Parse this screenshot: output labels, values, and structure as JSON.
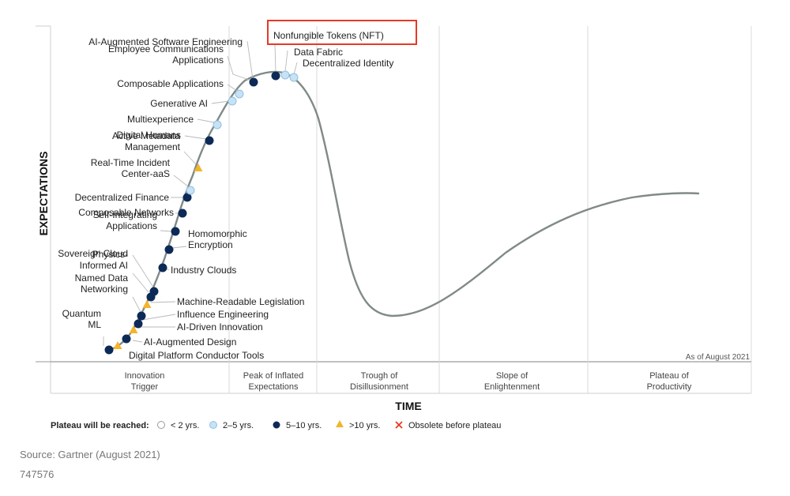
{
  "chart_data": {
    "type": "line",
    "subtype": "hype-cycle",
    "title": "",
    "ylabel": "EXPECTATIONS",
    "xlabel": "TIME",
    "as_of": "As of August 2021",
    "highlighted": "Nonfungible Tokens (NFT)",
    "phases": [
      "Innovation Trigger",
      "Peak of Inflated Expectations",
      "Trough of Disillusionment",
      "Slope of Enlightenment",
      "Plateau of Productivity"
    ],
    "legend": {
      "title": "Plateau will be reached:",
      "items": [
        {
          "label": "< 2 yrs.",
          "marker": "circle-white"
        },
        {
          "label": "2–5 yrs.",
          "marker": "circle-light-blue"
        },
        {
          "label": "5–10 yrs.",
          "marker": "circle-dark-blue"
        },
        {
          "label": ">10 yrs.",
          "marker": "triangle-yellow"
        },
        {
          "label": "Obsolete before plateau",
          "marker": "red-x"
        }
      ]
    },
    "technologies": [
      {
        "name": "Digital Platform Conductor Tools",
        "plateau": ">10 yrs."
      },
      {
        "name": "Quantum ML",
        "plateau": "5–10 yrs."
      },
      {
        "name": "AI-Augmented Design",
        "plateau": "5–10 yrs."
      },
      {
        "name": "AI-Driven Innovation",
        "plateau": ">10 yrs."
      },
      {
        "name": "Influence Engineering",
        "plateau": "5–10 yrs."
      },
      {
        "name": "Named Data Networking",
        "plateau": "5–10 yrs."
      },
      {
        "name": "Machine-Readable Legislation",
        "plateau": ">10 yrs."
      },
      {
        "name": "Physics-Informed AI",
        "plateau": "5–10 yrs."
      },
      {
        "name": "Sovereign Cloud",
        "plateau": "5–10 yrs."
      },
      {
        "name": "Industry Clouds",
        "plateau": "5–10 yrs."
      },
      {
        "name": "Homomorphic Encryption",
        "plateau": "5–10 yrs."
      },
      {
        "name": "Self-Integrating Applications",
        "plateau": "5–10 yrs."
      },
      {
        "name": "Composable Networks",
        "plateau": "5–10 yrs."
      },
      {
        "name": "Decentralized Finance",
        "plateau": "5–10 yrs."
      },
      {
        "name": "Real-Time Incident Center-aaS",
        "plateau": "2–5 yrs."
      },
      {
        "name": "Active Metadata Management",
        "plateau": ">10 yrs."
      },
      {
        "name": "Digital Humans",
        "plateau": "5–10 yrs."
      },
      {
        "name": "Multiexperience",
        "plateau": "2–5 yrs."
      },
      {
        "name": "Generative AI",
        "plateau": "2–5 yrs."
      },
      {
        "name": "Composable Applications",
        "plateau": "2–5 yrs."
      },
      {
        "name": "Employee Communications Applications",
        "plateau": "5–10 yrs."
      },
      {
        "name": "AI-Augmented Software Engineering",
        "plateau": "2–5 yrs."
      },
      {
        "name": "Nonfungible Tokens (NFT)",
        "plateau": "5–10 yrs."
      },
      {
        "name": "Data Fabric",
        "plateau": "2–5 yrs."
      },
      {
        "name": "Decentralized Identity",
        "plateau": "2–5 yrs."
      }
    ],
    "label_lines": {
      "Digital Platform Conductor Tools": [
        "Digital Platform Conductor Tools"
      ],
      "Quantum ML": [
        "Quantum",
        "ML"
      ],
      "AI-Augmented Design": [
        "AI-Augmented Design"
      ],
      "AI-Driven Innovation": [
        "AI-Driven Innovation"
      ],
      "Influence Engineering": [
        "Influence Engineering"
      ],
      "Named Data Networking": [
        "Named Data",
        "Networking"
      ],
      "Machine-Readable Legislation": [
        "Machine-Readable Legislation"
      ],
      "Physics-Informed AI": [
        "Physics-",
        "Informed AI"
      ],
      "Sovereign Cloud": [
        "Sovereign Cloud"
      ],
      "Industry Clouds": [
        "Industry Clouds"
      ],
      "Homomorphic Encryption": [
        "Homomorphic",
        "Encryption"
      ],
      "Self-Integrating Applications": [
        "Self-Integrating",
        "Applications"
      ],
      "Composable Networks": [
        "Composable Networks"
      ],
      "Decentralized Finance": [
        "Decentralized Finance"
      ],
      "Real-Time Incident Center-aaS": [
        "Real-Time Incident",
        "Center-aaS"
      ],
      "Active Metadata Management": [
        "Active Metadata",
        "Management"
      ],
      "Digital Humans": [
        "Digital Humans"
      ],
      "Multiexperience": [
        "Multiexperience"
      ],
      "Generative AI": [
        "Generative AI"
      ],
      "Composable Applications": [
        "Composable Applications"
      ],
      "Employee Communications Applications": [
        "Employee Communications",
        "Applications"
      ],
      "AI-Augmented Software Engineering": [
        "AI-Augmented Software Engineering"
      ],
      "Nonfungible Tokens (NFT)": [
        "Nonfungible Tokens (NFT)"
      ],
      "Data Fabric": [
        "Data Fabric"
      ],
      "Decentralized Identity": [
        "Decentralized Identity"
      ]
    },
    "colors": {
      "curve": "#808a87",
      "dark": "#0d2a57",
      "light": "#c7e2f5",
      "yellow": "#f2b52c",
      "highlight": "#e53a25",
      "grid": "#d9d9d9"
    }
  },
  "source": "Source: Gartner (August 2021)",
  "id_code": "747576"
}
